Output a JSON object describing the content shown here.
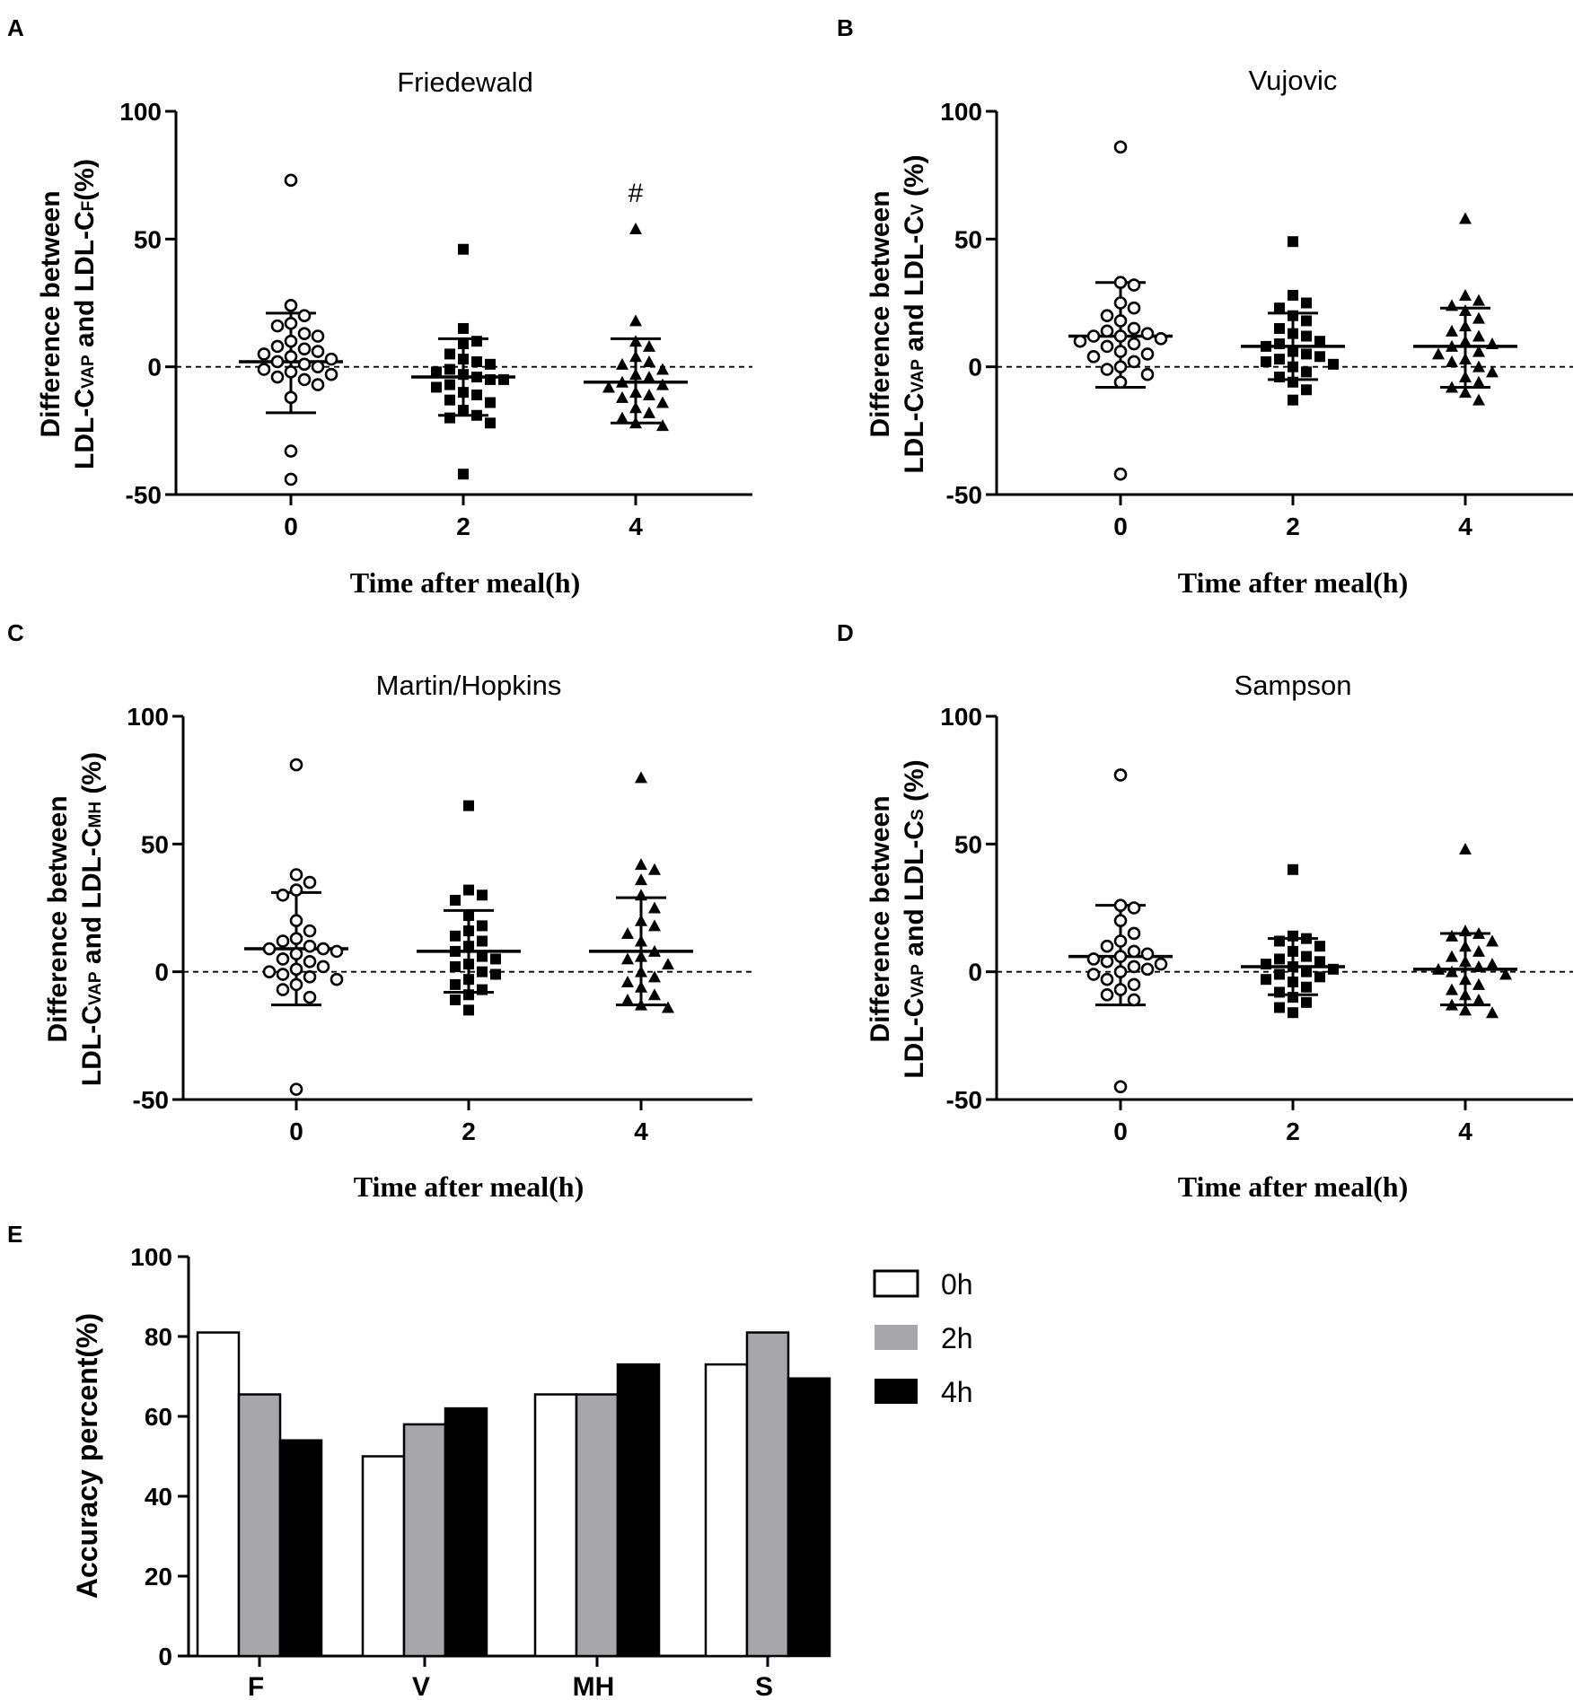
{
  "colors": {
    "ink": "#000000",
    "bar_0h": "#ffffff",
    "bar_2h": "#a7a7ab",
    "bar_4h": "#000000"
  },
  "chart_data": [
    {
      "panel": "A",
      "type": "scatter",
      "title": "Friedewald",
      "ylabel_line1": "Difference between",
      "ylabel_line2_pre": "LDL-C",
      "ylabel_line2_sub1": "VAP",
      "ylabel_line2_mid": " and LDL-C",
      "ylabel_line2_sub2": "F",
      "ylabel_line2_post": "(%)",
      "xlabel": "Time after meal(h)",
      "categories": [
        "0",
        "2",
        "4"
      ],
      "ylim": [
        -50,
        100
      ],
      "yticks": [
        -50,
        0,
        50,
        100
      ],
      "reference_line": 0,
      "annotation": {
        "text": "#",
        "category": "4",
        "value": 68
      },
      "series": [
        {
          "x": "0",
          "marker": "open-circle",
          "mean": 2,
          "sd_upper": 21,
          "sd_lower": -18,
          "values": [
            73,
            24,
            20,
            17,
            16,
            13,
            12,
            10,
            8,
            7,
            6,
            5,
            4,
            3,
            2,
            1,
            0,
            -1,
            -2,
            -3,
            -4,
            -5,
            -7,
            -12,
            -33,
            -44
          ]
        },
        {
          "x": "2",
          "marker": "filled-square",
          "mean": -4,
          "sd_upper": 11,
          "sd_lower": -19,
          "values": [
            46,
            15,
            10,
            9,
            5,
            3,
            2,
            1,
            -1,
            -2,
            -3,
            -4,
            -5,
            -5,
            -7,
            -8,
            -10,
            -11,
            -13,
            -14,
            -17,
            -19,
            -20,
            -22,
            -42
          ]
        },
        {
          "x": "4",
          "marker": "filled-triangle",
          "mean": -6,
          "sd_upper": 11,
          "sd_lower": -22,
          "values": [
            54,
            18,
            10,
            8,
            4,
            2,
            1,
            -1,
            -3,
            -4,
            -6,
            -7,
            -8,
            -10,
            -11,
            -12,
            -14,
            -16,
            -18,
            -20,
            -22,
            -23
          ]
        }
      ]
    },
    {
      "panel": "B",
      "type": "scatter",
      "title": "Vujovic",
      "ylabel_line1": "Difference between",
      "ylabel_line2_pre": "LDL-C",
      "ylabel_line2_sub1": "VAP",
      "ylabel_line2_mid": " and LDL-C",
      "ylabel_line2_sub2": "V",
      "ylabel_line2_post": " (%)",
      "xlabel": "Time after meal(h)",
      "categories": [
        "0",
        "2",
        "4"
      ],
      "ylim": [
        -50,
        100
      ],
      "yticks": [
        -50,
        0,
        50,
        100
      ],
      "reference_line": 0,
      "series": [
        {
          "x": "0",
          "marker": "open-circle",
          "mean": 12,
          "sd_upper": 33,
          "sd_lower": -8,
          "values": [
            86,
            33,
            32,
            25,
            23,
            20,
            18,
            15,
            14,
            13,
            12,
            12,
            11,
            10,
            9,
            8,
            6,
            5,
            4,
            2,
            0,
            -1,
            -3,
            -6,
            -42
          ]
        },
        {
          "x": "2",
          "marker": "filled-square",
          "mean": 8,
          "sd_upper": 21,
          "sd_lower": -5,
          "values": [
            49,
            28,
            25,
            23,
            20,
            18,
            15,
            13,
            12,
            10,
            9,
            8,
            6,
            5,
            4,
            3,
            2,
            1,
            0,
            -2,
            -4,
            -6,
            -9,
            -13
          ]
        },
        {
          "x": "4",
          "marker": "filled-triangle",
          "mean": 8,
          "sd_upper": 23,
          "sd_lower": -8,
          "values": [
            58,
            28,
            26,
            24,
            22,
            19,
            16,
            14,
            12,
            10,
            9,
            8,
            6,
            5,
            3,
            2,
            0,
            -2,
            -4,
            -6,
            -8,
            -10,
            -13
          ]
        }
      ]
    },
    {
      "panel": "C",
      "type": "scatter",
      "title": "Martin/Hopkins",
      "ylabel_line1": "Difference between",
      "ylabel_line2_pre": "LDL-C",
      "ylabel_line2_sub1": "VAP",
      "ylabel_line2_mid": " and LDL-C",
      "ylabel_line2_sub2": "MH",
      "ylabel_line2_post": " (%)",
      "xlabel": "Time after meal(h)",
      "categories": [
        "0",
        "2",
        "4"
      ],
      "ylim": [
        -50,
        100
      ],
      "yticks": [
        -50,
        0,
        50,
        100
      ],
      "reference_line": 0,
      "series": [
        {
          "x": "0",
          "marker": "open-circle",
          "mean": 9,
          "sd_upper": 31,
          "sd_lower": -13,
          "values": [
            81,
            38,
            35,
            32,
            30,
            20,
            16,
            13,
            12,
            10,
            9,
            9,
            8,
            7,
            5,
            4,
            2,
            1,
            0,
            -1,
            -2,
            -3,
            -5,
            -7,
            -10,
            -46
          ]
        },
        {
          "x": "2",
          "marker": "filled-square",
          "mean": 8,
          "sd_upper": 24,
          "sd_lower": -8,
          "values": [
            65,
            32,
            30,
            28,
            22,
            18,
            16,
            14,
            12,
            10,
            8,
            6,
            5,
            3,
            2,
            0,
            -1,
            -3,
            -5,
            -7,
            -9,
            -11,
            -15
          ]
        },
        {
          "x": "4",
          "marker": "filled-triangle",
          "mean": 8,
          "sd_upper": 29,
          "sd_lower": -13,
          "values": [
            76,
            42,
            40,
            36,
            30,
            25,
            20,
            18,
            15,
            12,
            8,
            6,
            5,
            3,
            0,
            -2,
            -4,
            -6,
            -9,
            -11,
            -13,
            -14
          ]
        }
      ]
    },
    {
      "panel": "D",
      "type": "scatter",
      "title": "Sampson",
      "ylabel_line1": "Difference between",
      "ylabel_line2_pre": "LDL-C",
      "ylabel_line2_sub1": "VAP",
      "ylabel_line2_mid": " and LDL-C",
      "ylabel_line2_sub2": "S",
      "ylabel_line2_post": " (%)",
      "xlabel": "Time after meal(h)",
      "categories": [
        "0",
        "2",
        "4"
      ],
      "ylim": [
        -50,
        100
      ],
      "yticks": [
        -50,
        0,
        50,
        100
      ],
      "reference_line": 0,
      "series": [
        {
          "x": "0",
          "marker": "open-circle",
          "mean": 6,
          "sd_upper": 26,
          "sd_lower": -13,
          "values": [
            77,
            26,
            25,
            20,
            15,
            12,
            10,
            8,
            7,
            6,
            5,
            4,
            3,
            2,
            1,
            0,
            -1,
            -3,
            -5,
            -7,
            -9,
            -11,
            -45
          ]
        },
        {
          "x": "2",
          "marker": "filled-square",
          "mean": 2,
          "sd_upper": 13,
          "sd_lower": -9,
          "values": [
            40,
            14,
            13,
            12,
            10,
            8,
            6,
            5,
            4,
            3,
            2,
            1,
            0,
            -1,
            -2,
            -3,
            -4,
            -6,
            -8,
            -10,
            -12,
            -14,
            -16
          ]
        },
        {
          "x": "4",
          "marker": "filled-triangle",
          "mean": 1,
          "sd_upper": 15,
          "sd_lower": -13,
          "values": [
            48,
            16,
            15,
            14,
            12,
            10,
            8,
            6,
            4,
            3,
            2,
            1,
            0,
            -1,
            -3,
            -5,
            -7,
            -9,
            -11,
            -13,
            -15,
            -16
          ]
        }
      ]
    },
    {
      "panel": "E",
      "type": "bar",
      "ylabel": "Accuracy percent(%)",
      "categories": [
        "F",
        "V",
        "MH",
        "S"
      ],
      "ylim": [
        0,
        100
      ],
      "yticks": [
        0,
        20,
        40,
        60,
        80,
        100
      ],
      "legend_placement": "right",
      "series": [
        {
          "name": "0h",
          "color": "#ffffff",
          "values": [
            81,
            50,
            65.5,
            73
          ]
        },
        {
          "name": "2h",
          "color": "#a7a7ab",
          "values": [
            65.5,
            58,
            65.5,
            81
          ]
        },
        {
          "name": "4h",
          "color": "#000000",
          "values": [
            54,
            62,
            73,
            69.5
          ]
        }
      ]
    }
  ]
}
